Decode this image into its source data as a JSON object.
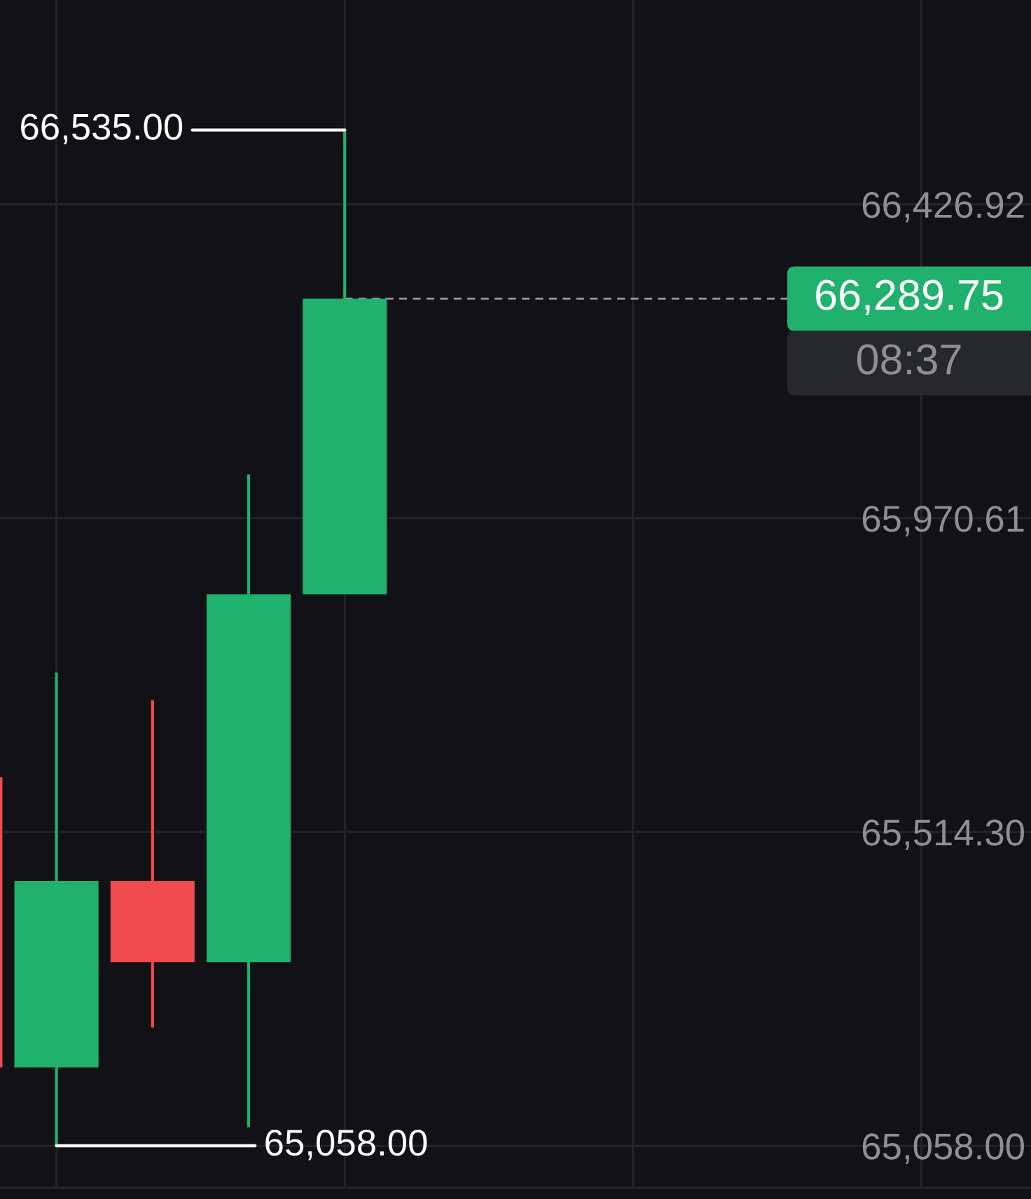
{
  "chart_data": {
    "type": "candlestick",
    "categories": [
      null,
      null,
      null,
      null,
      null,
      null,
      null,
      null,
      null,
      null,
      null,
      null
    ],
    "ohlc": [
      [
        65594,
        65594,
        65172,
        65172
      ],
      [
        65172,
        65746,
        65058,
        65443
      ],
      [
        65443,
        65706,
        65230,
        65325
      ],
      [
        65325,
        66034,
        65085,
        65860
      ],
      [
        65860,
        66535,
        65860,
        66289.75
      ],
      null,
      null,
      null,
      null,
      null,
      null,
      null
    ],
    "colors": [
      "#f04a4f",
      "#20b26c",
      "#f04a4f",
      "#20b26c",
      "#20b26c",
      null,
      null,
      null,
      null,
      null,
      null,
      null
    ],
    "ylim": [
      64997,
      66724
    ],
    "yticks": [
      {
        "value": 65058,
        "label": "65,058.00"
      },
      {
        "value": 65514.3,
        "label": "65,514.30"
      },
      {
        "value": 65970.61,
        "label": "65,970.61"
      },
      {
        "value": 66426.92,
        "label": "66,426.92"
      }
    ],
    "grid": true,
    "tick_labels": "y",
    "ref_lines": [
      {
        "axis": "y",
        "value": 66289.75,
        "label": "66,289.75",
        "color": "#9a9a9e",
        "line_style": "dashed"
      }
    ],
    "annotations": [
      "66,535.00",
      "65,058.00",
      "08:37"
    ]
  }
}
